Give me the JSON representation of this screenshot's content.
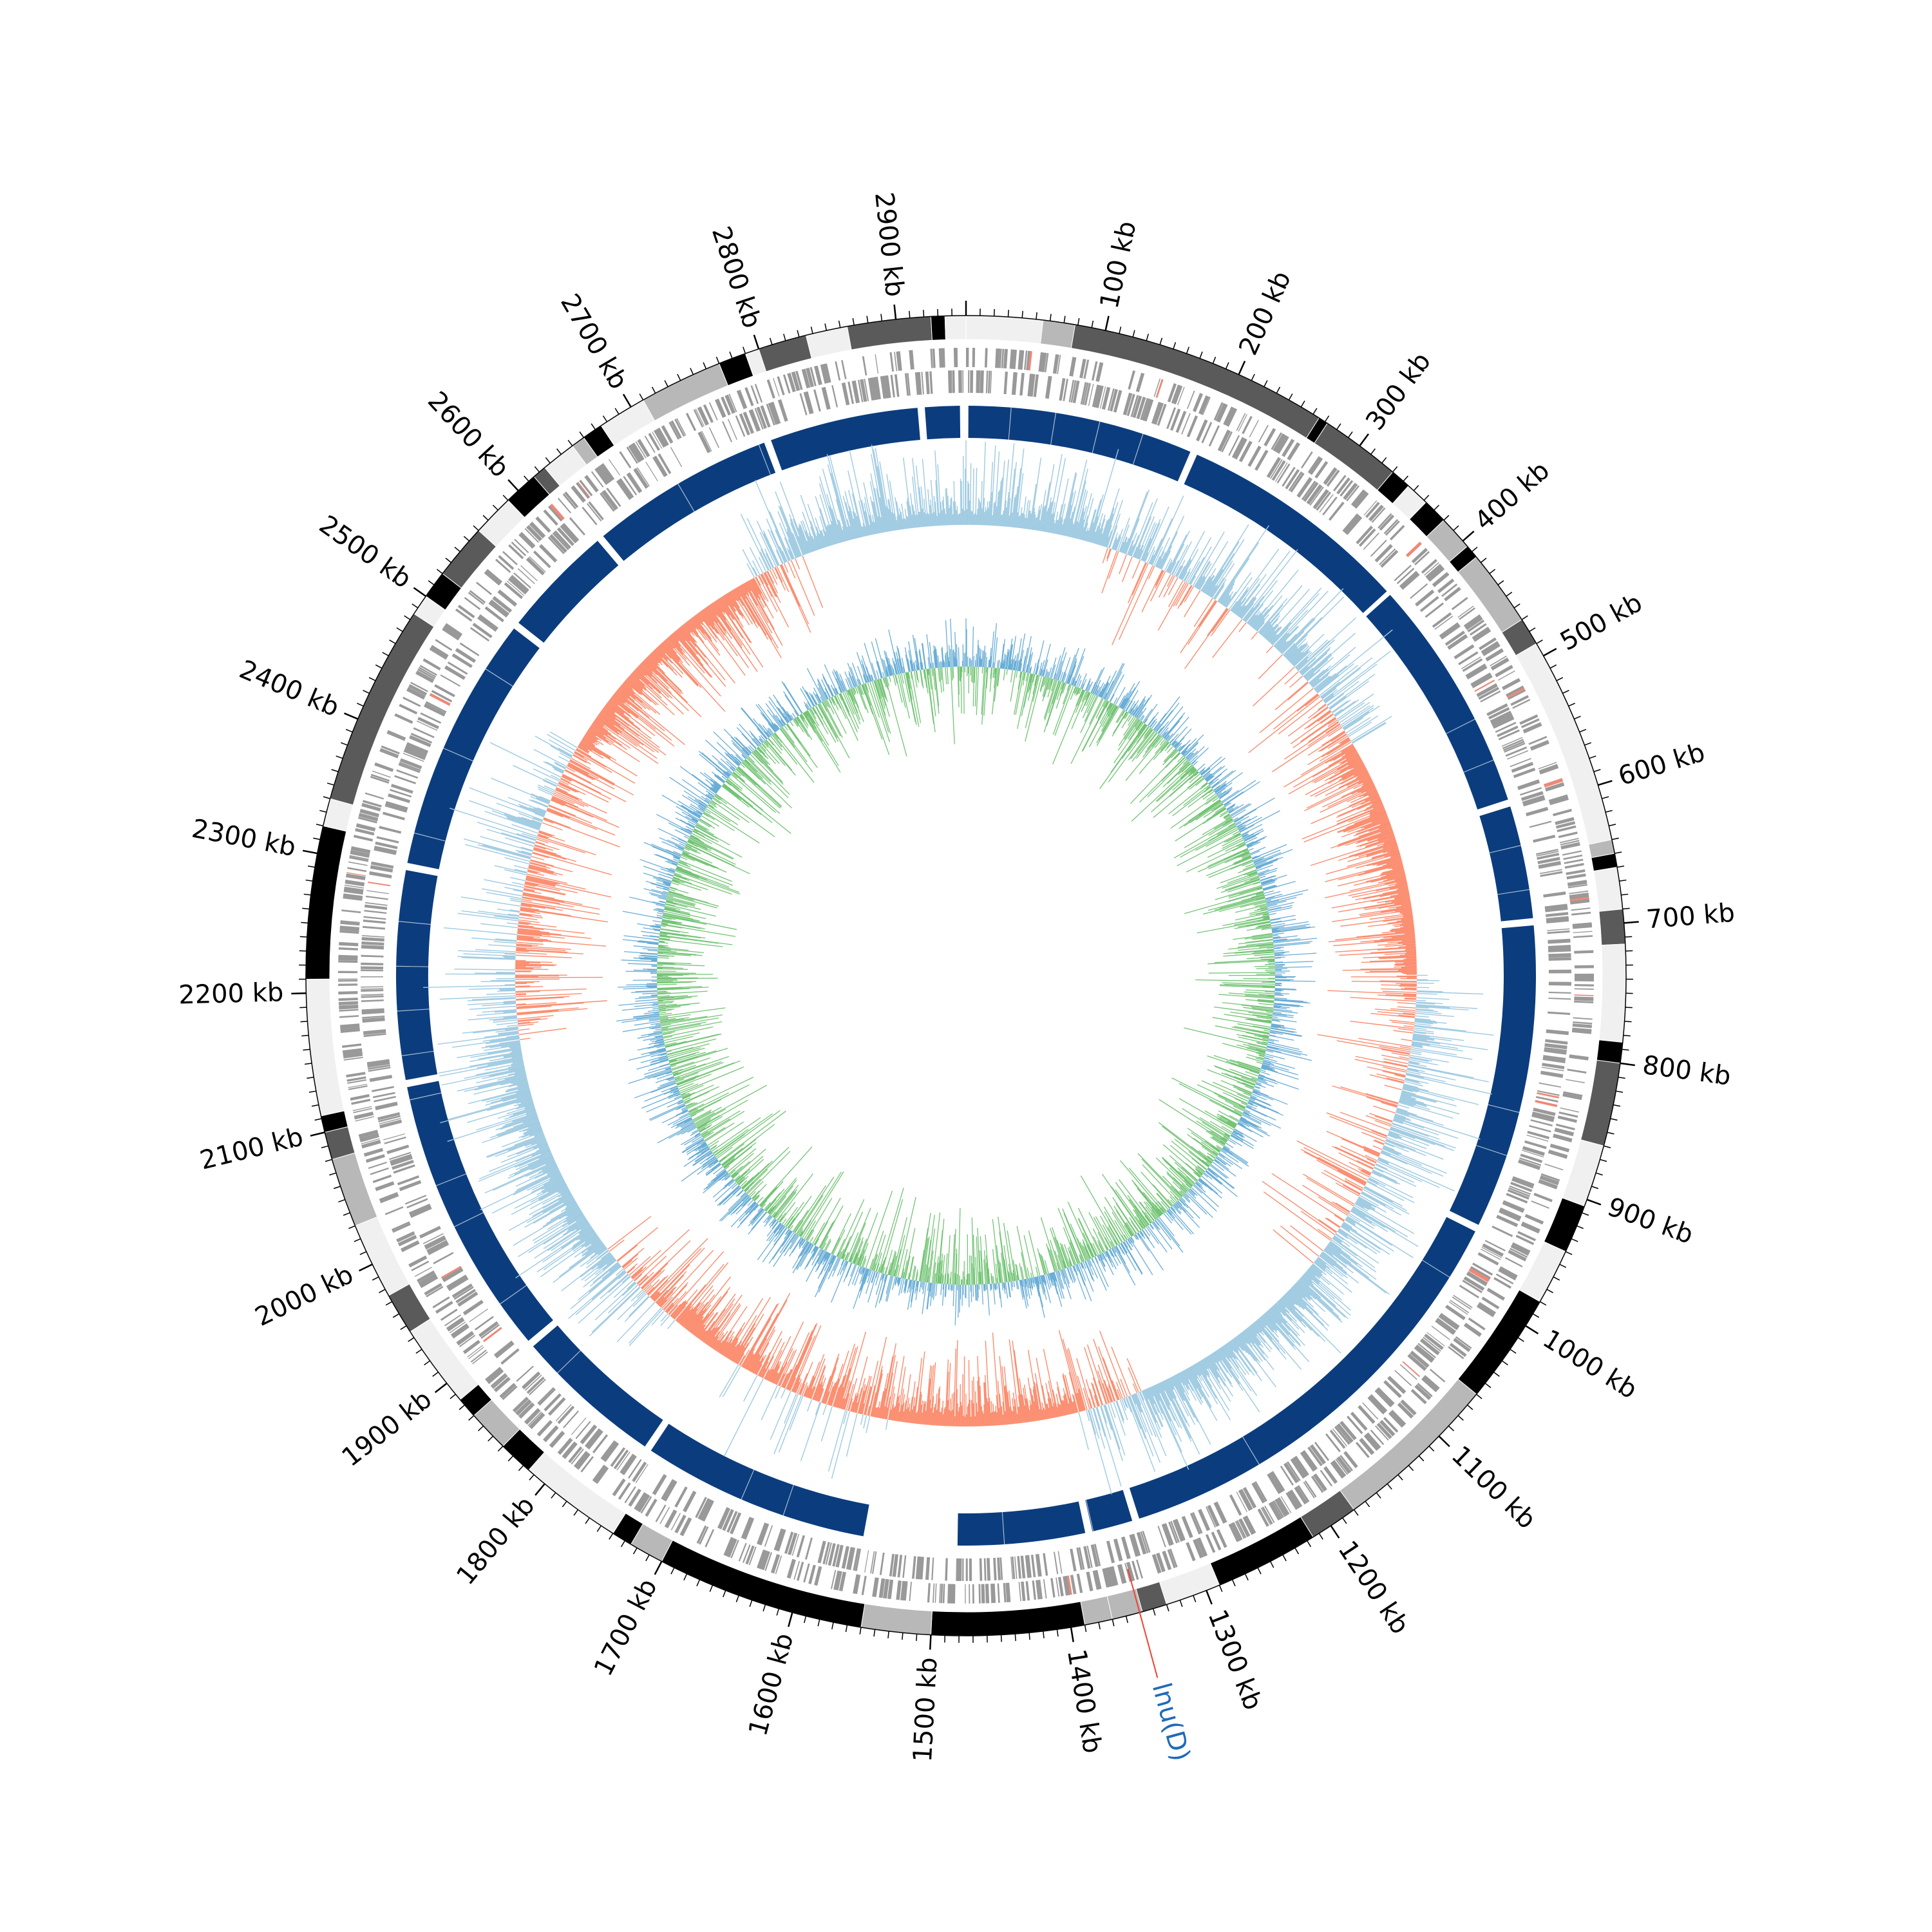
{
  "genome": {
    "length_kb": 2950,
    "tick_labels": [
      {
        "kb": 100,
        "text": "100 kb"
      },
      {
        "kb": 200,
        "text": "200 kb"
      },
      {
        "kb": 300,
        "text": "300 kb"
      },
      {
        "kb": 400,
        "text": "400 kb"
      },
      {
        "kb": 500,
        "text": "500 kb"
      },
      {
        "kb": 600,
        "text": "600 kb"
      },
      {
        "kb": 700,
        "text": "700 kb"
      },
      {
        "kb": 800,
        "text": "800 kb"
      },
      {
        "kb": 900,
        "text": "900 kb"
      },
      {
        "kb": 1000,
        "text": "1000 kb"
      },
      {
        "kb": 1100,
        "text": "1100 kb"
      },
      {
        "kb": 1200,
        "text": "1200 kb"
      },
      {
        "kb": 1300,
        "text": "1300 kb"
      },
      {
        "kb": 1400,
        "text": "1400 kb"
      },
      {
        "kb": 1500,
        "text": "1500 kb"
      },
      {
        "kb": 1600,
        "text": "1600 kb"
      },
      {
        "kb": 1700,
        "text": "1700 kb"
      },
      {
        "kb": 1800,
        "text": "1800 kb"
      },
      {
        "kb": 1900,
        "text": "1900 kb"
      },
      {
        "kb": 2000,
        "text": "2000 kb"
      },
      {
        "kb": 2100,
        "text": "2100 kb"
      },
      {
        "kb": 2200,
        "text": "2200 kb"
      },
      {
        "kb": 2300,
        "text": "2300 kb"
      },
      {
        "kb": 2400,
        "text": "2400 kb"
      },
      {
        "kb": 2500,
        "text": "2500 kb"
      },
      {
        "kb": 2600,
        "text": "2600 kb"
      },
      {
        "kb": 2700,
        "text": "2700 kb"
      },
      {
        "kb": 2800,
        "text": "2800 kb"
      },
      {
        "kb": 2900,
        "text": "2900 kb"
      }
    ],
    "annotation": {
      "label": "lnu(D)",
      "kb": 1350,
      "line_color": "#ee4433",
      "text_color": "#1f6bb8"
    }
  },
  "tracks": {
    "contigs": [
      {
        "start": 0,
        "end": 55,
        "shade": "#f0f0f0"
      },
      {
        "start": 55,
        "end": 78,
        "shade": "#b8b8b8"
      },
      {
        "start": 78,
        "end": 265,
        "shade": "#5a5a5a"
      },
      {
        "start": 265,
        "end": 272,
        "shade": "#000000"
      },
      {
        "start": 272,
        "end": 330,
        "shade": "#5a5a5a"
      },
      {
        "start": 330,
        "end": 345,
        "shade": "#000000"
      },
      {
        "start": 345,
        "end": 362,
        "shade": "#f0f0f0"
      },
      {
        "start": 362,
        "end": 380,
        "shade": "#000000"
      },
      {
        "start": 380,
        "end": 405,
        "shade": "#b8b8b8"
      },
      {
        "start": 405,
        "end": 415,
        "shade": "#000000"
      },
      {
        "start": 415,
        "end": 470,
        "shade": "#b8b8b8"
      },
      {
        "start": 470,
        "end": 490,
        "shade": "#5a5a5a"
      },
      {
        "start": 490,
        "end": 640,
        "shade": "#f0f0f0"
      },
      {
        "start": 640,
        "end": 650,
        "shade": "#b8b8b8"
      },
      {
        "start": 650,
        "end": 660,
        "shade": "#000000"
      },
      {
        "start": 660,
        "end": 690,
        "shade": "#f0f0f0"
      },
      {
        "start": 690,
        "end": 715,
        "shade": "#5a5a5a"
      },
      {
        "start": 715,
        "end": 785,
        "shade": "#f0f0f0"
      },
      {
        "start": 785,
        "end": 800,
        "shade": "#000000"
      },
      {
        "start": 800,
        "end": 860,
        "shade": "#5a5a5a"
      },
      {
        "start": 860,
        "end": 905,
        "shade": "#f0f0f0"
      },
      {
        "start": 905,
        "end": 940,
        "shade": "#000000"
      },
      {
        "start": 940,
        "end": 980,
        "shade": "#f0f0f0"
      },
      {
        "start": 980,
        "end": 1060,
        "shade": "#000000"
      },
      {
        "start": 1060,
        "end": 1180,
        "shade": "#b8b8b8"
      },
      {
        "start": 1180,
        "end": 1215,
        "shade": "#5a5a5a"
      },
      {
        "start": 1215,
        "end": 1290,
        "shade": "#000000"
      },
      {
        "start": 1290,
        "end": 1330,
        "shade": "#f0f0f0"
      },
      {
        "start": 1330,
        "end": 1348,
        "shade": "#5a5a5a"
      },
      {
        "start": 1348,
        "end": 1370,
        "shade": "#b8b8b8"
      },
      {
        "start": 1370,
        "end": 1390,
        "shade": "#b8b8b8"
      },
      {
        "start": 1390,
        "end": 1500,
        "shade": "#000000"
      },
      {
        "start": 1500,
        "end": 1550,
        "shade": "#b8b8b8"
      },
      {
        "start": 1550,
        "end": 1700,
        "shade": "#000000"
      },
      {
        "start": 1700,
        "end": 1725,
        "shade": "#b8b8b8"
      },
      {
        "start": 1725,
        "end": 1740,
        "shade": "#000000"
      },
      {
        "start": 1740,
        "end": 1815,
        "shade": "#f0f0f0"
      },
      {
        "start": 1815,
        "end": 1840,
        "shade": "#000000"
      },
      {
        "start": 1840,
        "end": 1870,
        "shade": "#b8b8b8"
      },
      {
        "start": 1870,
        "end": 1885,
        "shade": "#000000"
      },
      {
        "start": 1885,
        "end": 1945,
        "shade": "#f0f0f0"
      },
      {
        "start": 1945,
        "end": 1975,
        "shade": "#5a5a5a"
      },
      {
        "start": 1975,
        "end": 2030,
        "shade": "#f0f0f0"
      },
      {
        "start": 2030,
        "end": 2080,
        "shade": "#b8b8b8"
      },
      {
        "start": 2080,
        "end": 2100,
        "shade": "#5a5a5a"
      },
      {
        "start": 2100,
        "end": 2112,
        "shade": "#000000"
      },
      {
        "start": 2112,
        "end": 2210,
        "shade": "#f0f0f0"
      },
      {
        "start": 2210,
        "end": 2320,
        "shade": "#000000"
      },
      {
        "start": 2320,
        "end": 2340,
        "shade": "#f0f0f0"
      },
      {
        "start": 2340,
        "end": 2485,
        "shade": "#5a5a5a"
      },
      {
        "start": 2485,
        "end": 2500,
        "shade": "#f0f0f0"
      },
      {
        "start": 2500,
        "end": 2520,
        "shade": "#000000"
      },
      {
        "start": 2520,
        "end": 2560,
        "shade": "#5a5a5a"
      },
      {
        "start": 2560,
        "end": 2590,
        "shade": "#f0f0f0"
      },
      {
        "start": 2590,
        "end": 2615,
        "shade": "#000000"
      },
      {
        "start": 2615,
        "end": 2625,
        "shade": "#5a5a5a"
      },
      {
        "start": 2625,
        "end": 2650,
        "shade": "#f0f0f0"
      },
      {
        "start": 2650,
        "end": 2660,
        "shade": "#b8b8b8"
      },
      {
        "start": 2660,
        "end": 2675,
        "shade": "#000000"
      },
      {
        "start": 2675,
        "end": 2710,
        "shade": "#f0f0f0"
      },
      {
        "start": 2710,
        "end": 2770,
        "shade": "#b8b8b8"
      },
      {
        "start": 2770,
        "end": 2790,
        "shade": "#000000"
      },
      {
        "start": 2790,
        "end": 2800,
        "shade": "#f0f0f0"
      },
      {
        "start": 2800,
        "end": 2835,
        "shade": "#5a5a5a"
      },
      {
        "start": 2835,
        "end": 2865,
        "shade": "#f0f0f0"
      },
      {
        "start": 2865,
        "end": 2925,
        "shade": "#5a5a5a"
      },
      {
        "start": 2925,
        "end": 2935,
        "shade": "#000000"
      },
      {
        "start": 2935,
        "end": 2950,
        "shade": "#f0f0f0"
      }
    ],
    "conserved_blocks": [
      {
        "start": 2,
        "end": 190
      },
      {
        "start": 196,
        "end": 390
      },
      {
        "start": 394,
        "end": 590
      },
      {
        "start": 596,
        "end": 690
      },
      {
        "start": 696,
        "end": 950
      },
      {
        "start": 956,
        "end": 1330
      },
      {
        "start": 1336,
        "end": 1370
      },
      {
        "start": 1376,
        "end": 1482
      },
      {
        "start": 1560,
        "end": 1750
      },
      {
        "start": 1756,
        "end": 1880
      },
      {
        "start": 1886,
        "end": 2120
      },
      {
        "start": 2126,
        "end": 2300
      },
      {
        "start": 2306,
        "end": 2520
      },
      {
        "start": 2526,
        "end": 2620
      },
      {
        "start": 2626,
        "end": 2780
      },
      {
        "start": 2786,
        "end": 2910
      },
      {
        "start": 2916,
        "end": 2945
      }
    ],
    "colors": {
      "contig_outline": "#ffffff",
      "gene_forward": "#999999",
      "gene_reverse": "#999999",
      "gene_highlight": "#ee8877",
      "conserved": "#0b3d7e",
      "gc_content_positive": "#9ecae1",
      "gc_content_negative": "#fb8c6e",
      "gc_skew_positive": "#6baed6",
      "gc_skew_negative": "#74c476"
    }
  }
}
